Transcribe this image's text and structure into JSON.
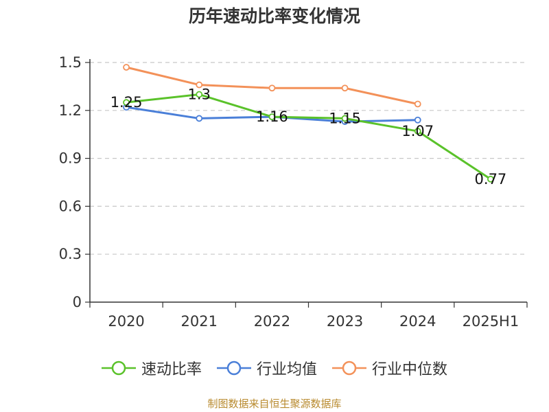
{
  "chart_data": {
    "type": "line",
    "title": "历年速动比率变化情况",
    "categories": [
      "2020",
      "2021",
      "2022",
      "2023",
      "2024",
      "2025H1"
    ],
    "ylim": [
      0,
      1.5
    ],
    "yticks": [
      "0",
      "0.3",
      "0.6",
      "0.9",
      "1.2",
      "1.5"
    ],
    "grid": true,
    "legend_position": "bottom",
    "series": [
      {
        "name": "速动比率",
        "color": "#5ac22a",
        "values": [
          1.25,
          1.3,
          1.16,
          1.15,
          1.07,
          0.77
        ],
        "labels": [
          "1.25",
          "1.3",
          "1.16",
          "1.15",
          "1.07",
          "0.77"
        ]
      },
      {
        "name": "行业均值",
        "color": "#4a7fd8",
        "values": [
          1.22,
          1.15,
          1.16,
          1.13,
          1.14,
          null
        ]
      },
      {
        "name": "行业中位数",
        "color": "#f39159",
        "values": [
          1.47,
          1.36,
          1.34,
          1.34,
          1.24,
          null
        ]
      }
    ]
  },
  "source": "制图数据来自恒生聚源数据库"
}
